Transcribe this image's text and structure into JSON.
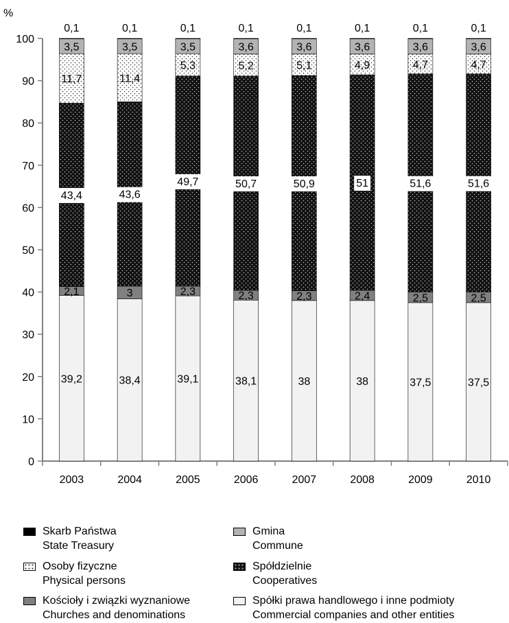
{
  "chart_data": {
    "type": "bar",
    "stacked": true,
    "ylabel": "%",
    "ylim": [
      0,
      100
    ],
    "yticks": [
      0,
      10,
      20,
      30,
      40,
      50,
      60,
      70,
      80,
      90,
      100
    ],
    "grid": false,
    "legend_position": "bottom",
    "categories": [
      "2003",
      "2004",
      "2005",
      "2006",
      "2007",
      "2008",
      "2009",
      "2010"
    ],
    "series": [
      {
        "key": "commercial",
        "name": "Spółki prawa handlowego i inne podmioty",
        "name_en": "Commercial companies and other entities",
        "color": "#f2f2f2",
        "pattern": "solid-light",
        "values": [
          39.2,
          38.4,
          39.1,
          38.1,
          38,
          38,
          37.5,
          37.5
        ],
        "labels": [
          "39,2",
          "38,4",
          "39,1",
          "38,1",
          "38",
          "38",
          "37,5",
          "37,5"
        ]
      },
      {
        "key": "churches",
        "name": "Kościoły i związki wyznaniowe",
        "name_en": "Churches and denominations",
        "color": "#808080",
        "pattern": "solid-dark",
        "values": [
          2.1,
          3,
          2.3,
          2.3,
          2.3,
          2.4,
          2.5,
          2.5
        ],
        "labels": [
          "2,1",
          "3",
          "2,3",
          "2,3",
          "2,3",
          "2,4",
          "2,5",
          "2,5"
        ]
      },
      {
        "key": "cooperatives",
        "name": "Spółdzielnie",
        "name_en": "Cooperatives",
        "color": "#111111",
        "pattern": "dots-light-on-dark",
        "values": [
          43.4,
          43.6,
          49.7,
          50.7,
          50.9,
          51,
          51.6,
          51.6
        ],
        "labels": [
          "43,4",
          "43,6",
          "49,7",
          "50,7",
          "50,9",
          "51",
          "51,6",
          "51,6"
        ]
      },
      {
        "key": "persons",
        "name": "Osoby fizyczne",
        "name_en": "Physical persons",
        "color": "#ffffff",
        "pattern": "dots-dark-on-light",
        "values": [
          11.7,
          11.4,
          5.3,
          5.2,
          5.1,
          4.9,
          4.7,
          4.7
        ],
        "labels": [
          "11,7",
          "11,4",
          "5,3",
          "5,2",
          "5,1",
          "4,9",
          "4,7",
          "4,7"
        ]
      },
      {
        "key": "commune",
        "name": "Gmina",
        "name_en": "Commune",
        "color": "#b3b3b3",
        "pattern": "solid-mid",
        "values": [
          3.5,
          3.5,
          3.5,
          3.6,
          3.6,
          3.6,
          3.6,
          3.6
        ],
        "labels": [
          "3,5",
          "3,5",
          "3,5",
          "3,6",
          "3,6",
          "3,6",
          "3,6",
          "3,6"
        ]
      },
      {
        "key": "treasury",
        "name": "Skarb Państwa",
        "name_en": "State Treasury",
        "color": "#000000",
        "pattern": "solid-black",
        "values": [
          0.1,
          0.1,
          0.1,
          0.1,
          0.1,
          0.1,
          0.1,
          0.1
        ],
        "labels": [
          "0,1",
          "0,1",
          "0,1",
          "0,1",
          "0,1",
          "0,1",
          "0,1",
          "0,1"
        ]
      }
    ],
    "legend_order": [
      "treasury",
      "commune",
      "persons",
      "cooperatives",
      "churches",
      "commercial"
    ]
  }
}
